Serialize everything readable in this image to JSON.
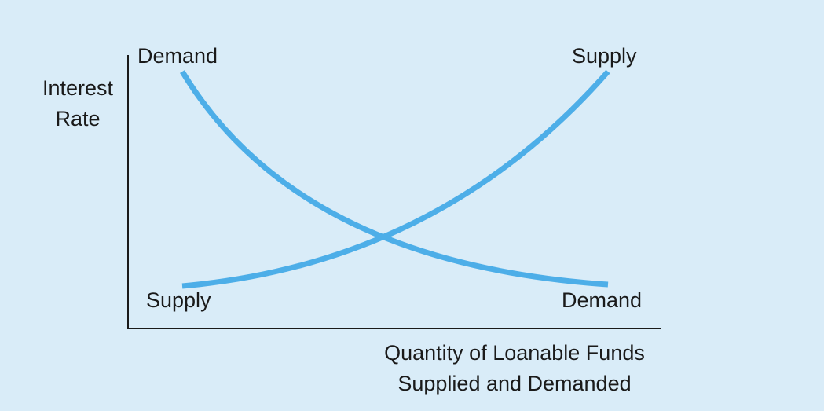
{
  "labels": {
    "y_axis": [
      "Interest",
      "Rate"
    ],
    "x_axis": [
      "Quantity of Loanable Funds",
      "Supplied and Demanded"
    ],
    "demand_top": "Demand",
    "supply_top": "Supply",
    "supply_bottom": "Supply",
    "demand_bottom": "Demand"
  },
  "colors": {
    "background": "#d9ecf8",
    "curve": "#4daee8",
    "axis": "#1a1a1a"
  },
  "curves": [
    {
      "name": "demand",
      "slope": "downward"
    },
    {
      "name": "supply",
      "slope": "upward"
    }
  ]
}
